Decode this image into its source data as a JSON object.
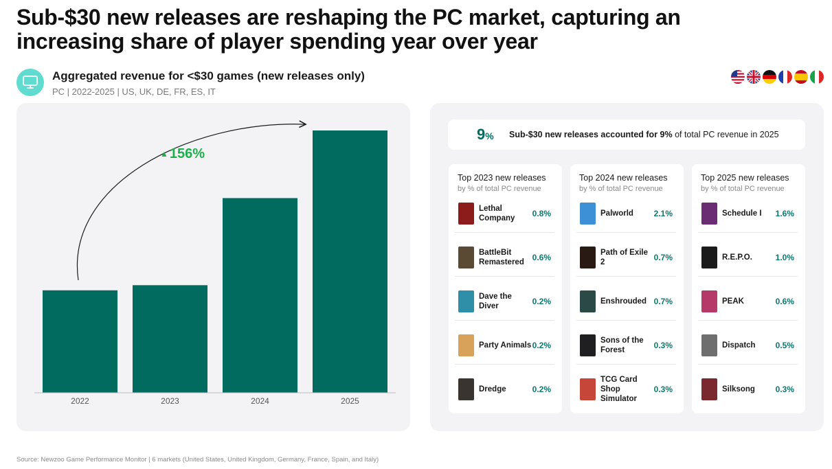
{
  "headline": "Sub-$30 new releases are reshaping the PC market, capturing an increasing share of player spending year over year",
  "subtitle": {
    "title": "Aggregated revenue for <$30 games (new releases only)",
    "meta": "PC | 2022-2025 | US, UK, DE, FR, ES, IT",
    "icon": "monitor-icon"
  },
  "flags": [
    "us-flag-icon",
    "uk-flag-icon",
    "germany-flag-icon",
    "france-flag-icon",
    "spain-flag-icon",
    "italy-flag-icon"
  ],
  "chart_data": {
    "type": "bar",
    "categories": [
      "2022",
      "2023",
      "2024",
      "2025"
    ],
    "values": [
      100,
      105,
      190,
      256
    ],
    "ylim": [
      0,
      256
    ],
    "growth_annotation": "156%",
    "bar_color": "#006b5e",
    "grid": false
  },
  "summary": {
    "big": "9",
    "big_unit": "%",
    "lead": "Sub-$30 new releases accounted for 9%",
    "rest": " of total PC revenue in 2025"
  },
  "cards": [
    {
      "title": "Top 2023 new releases",
      "sub": "by % of total PC revenue",
      "games": [
        {
          "name": "Lethal Company",
          "value": "0.8%",
          "color": "#8c1c1c"
        },
        {
          "name": "BattleBit Remastered",
          "value": "0.6%",
          "color": "#5a4a33"
        },
        {
          "name": "Dave the Diver",
          "value": "0.2%",
          "color": "#2f8ea8"
        },
        {
          "name": "Party Animals",
          "value": "0.2%",
          "color": "#d9a25a"
        },
        {
          "name": "Dredge",
          "value": "0.2%",
          "color": "#3a3431"
        }
      ]
    },
    {
      "title": "Top 2024 new releases",
      "sub": "by % of total PC revenue",
      "games": [
        {
          "name": "Palworld",
          "value": "2.1%",
          "color": "#3d8fd6"
        },
        {
          "name": "Path of Exile 2",
          "value": "0.7%",
          "color": "#2a1a14"
        },
        {
          "name": "Enshrouded",
          "value": "0.7%",
          "color": "#2b4a47"
        },
        {
          "name": "Sons of the Forest",
          "value": "0.3%",
          "color": "#1f1f22"
        },
        {
          "name": "TCG Card Shop Simulator",
          "value": "0.3%",
          "color": "#c7463a"
        }
      ]
    },
    {
      "title": "Top 2025 new releases",
      "sub": "by % of total PC revenue",
      "games": [
        {
          "name": "Schedule I",
          "value": "1.6%",
          "color": "#6a2c72"
        },
        {
          "name": "R.E.P.O.",
          "value": "1.0%",
          "color": "#1b1b1b"
        },
        {
          "name": "PEAK",
          "value": "0.6%",
          "color": "#b53a6a"
        },
        {
          "name": "Dispatch",
          "value": "0.5%",
          "color": "#6e6e6e"
        },
        {
          "name": "Silksong",
          "value": "0.3%",
          "color": "#7a2a2e"
        }
      ]
    }
  ],
  "source": "Source: Newzoo Game Performance Monitor | 6 markets (United States, United Kingdom, Germany, France, Spain, and Italy)"
}
